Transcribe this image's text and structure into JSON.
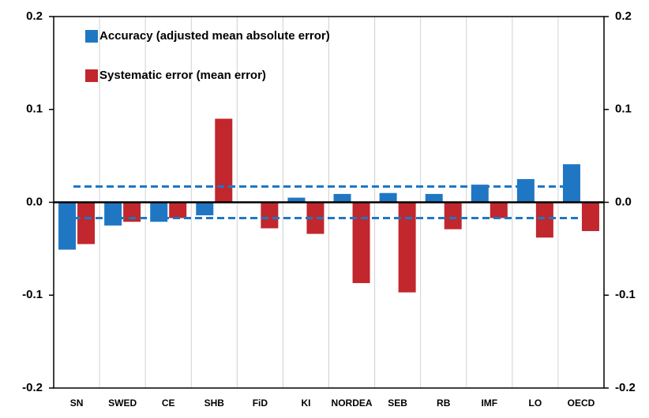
{
  "chart_data": {
    "type": "bar",
    "categories": [
      "SN",
      "SWED",
      "CE",
      "SHB",
      "FiD",
      "KI",
      "NORDEA",
      "SEB",
      "RB",
      "IMF",
      "LO",
      "OECD"
    ],
    "series": [
      {
        "name": "Accuracy (adjusted mean absolute error)",
        "color": "#1f77c4",
        "values": [
          -0.051,
          -0.025,
          -0.021,
          -0.014,
          null,
          0.005,
          0.009,
          0.01,
          0.009,
          0.019,
          0.025,
          0.041
        ]
      },
      {
        "name": "Systematic error (mean error)",
        "color": "#c1272d",
        "values": [
          -0.045,
          -0.021,
          -0.017,
          0.09,
          -0.028,
          -0.034,
          -0.087,
          -0.097,
          -0.029,
          -0.017,
          -0.038,
          -0.031
        ]
      }
    ],
    "reference_lines": [
      0.017,
      -0.017
    ],
    "reference_color": "#1f77c4",
    "ylim": [
      -0.2,
      0.2
    ],
    "yticks": [
      0.2,
      0.1,
      {
        "value": 0,
        "label": "0.0"
      },
      -0.1,
      -0.2
    ],
    "y2lim": [
      -0.2,
      0.2
    ],
    "y2ticks": [
      0.2,
      0.1,
      {
        "value": 0,
        "label": "0.0"
      },
      -0.1,
      -0.2
    ],
    "grid": true,
    "legend": "top-left"
  }
}
